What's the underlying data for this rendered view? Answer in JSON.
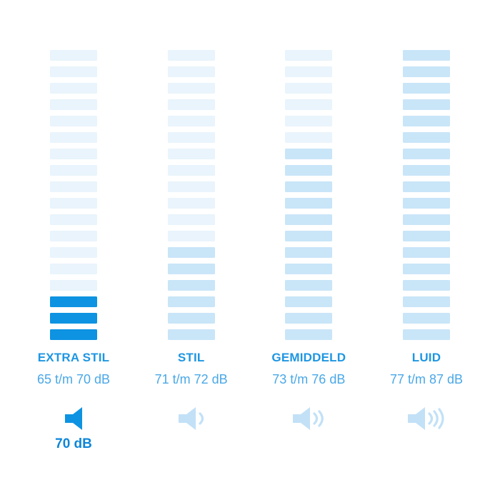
{
  "page": {
    "background": "#ffffff"
  },
  "colors": {
    "title_text": "#1e96e2",
    "range_text": "#4aa8e7",
    "selected_text": "#0e86d8",
    "segment_light": "#e9f4fc",
    "segment_medium": "#c9e5f8",
    "segment_bright": "#0d93e2",
    "icon_light": "#c2e1f7",
    "icon_bright": "#0d93e2"
  },
  "chart_data": {
    "type": "bar",
    "subtype": "segmented_volume_meter",
    "title": "",
    "unit": "dB",
    "grid": false,
    "legend_position": "none",
    "segments_per_column": 18,
    "categories": [
      "EXTRA STIL",
      "STIL",
      "GEMIDDELD",
      "LUID"
    ],
    "series": [
      {
        "name": "active_segments",
        "values": [
          3,
          6,
          12,
          18
        ]
      },
      {
        "name": "speaker_waves",
        "values": [
          0,
          1,
          2,
          3
        ]
      }
    ],
    "range_labels": [
      "65 t/m 70 dB",
      "71 t/m 72 dB",
      "73 t/m 76 dB",
      "77 t/m 87 dB"
    ],
    "db_ranges": [
      [
        65,
        70
      ],
      [
        71,
        72
      ],
      [
        73,
        76
      ],
      [
        77,
        87
      ]
    ],
    "selected_category": "EXTRA STIL",
    "selected_value_label": "70 dB"
  },
  "columns": [
    {
      "title": "EXTRA STIL",
      "range_label": "65 t/m 70 dB",
      "total_segments": 18,
      "active_segments": 3,
      "segment_inactive_color": "#e9f4fc",
      "segment_active_color": "#0d93e2",
      "speaker_waves": 0,
      "icon_name": "speaker-mute-icon",
      "icon_color": "#0d93e2",
      "selected": true,
      "selected_label": "70 dB"
    },
    {
      "title": "STIL",
      "range_label": "71 t/m 72 dB",
      "total_segments": 18,
      "active_segments": 6,
      "segment_inactive_color": "#e9f4fc",
      "segment_active_color": "#c9e5f8",
      "speaker_waves": 1,
      "icon_name": "speaker-low-icon",
      "icon_color": "#c2e1f7",
      "selected": false
    },
    {
      "title": "GEMIDDELD",
      "range_label": "73 t/m 76 dB",
      "total_segments": 18,
      "active_segments": 12,
      "segment_inactive_color": "#e9f4fc",
      "segment_active_color": "#c9e5f8",
      "speaker_waves": 2,
      "icon_name": "speaker-medium-icon",
      "icon_color": "#c2e1f7",
      "selected": false
    },
    {
      "title": "LUID",
      "range_label": "77 t/m 87 dB",
      "total_segments": 18,
      "active_segments": 18,
      "segment_inactive_color": "#e9f4fc",
      "segment_active_color": "#c9e5f8",
      "speaker_waves": 3,
      "icon_name": "speaker-loud-icon",
      "icon_color": "#c2e1f7",
      "selected": false
    }
  ]
}
